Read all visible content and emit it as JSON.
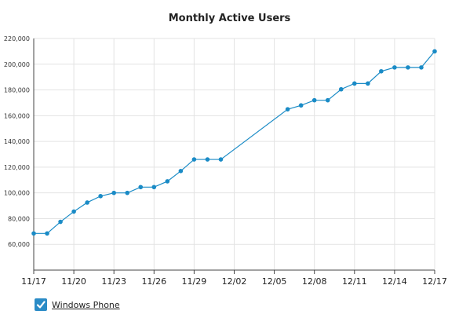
{
  "chart_data": {
    "type": "line",
    "title": "Monthly Active Users",
    "xlabel": "",
    "ylabel": "",
    "ylim": [
      40000,
      220000
    ],
    "yticks": [
      "60,000",
      "80,000",
      "100,000",
      "120,000",
      "140,000",
      "160,000",
      "180,000",
      "200,000",
      "220,000"
    ],
    "ytick_values": [
      60000,
      80000,
      100000,
      120000,
      140000,
      160000,
      180000,
      200000,
      220000
    ],
    "xticks": [
      "11/17",
      "11/20",
      "11/23",
      "11/26",
      "11/29",
      "12/02",
      "12/05",
      "12/08",
      "12/11",
      "12/14",
      "12/17"
    ],
    "grid": true,
    "legend_position": "bottom-left",
    "series": [
      {
        "name": "Windows Phone",
        "color": "#1a8bc6",
        "x": [
          "11/17",
          "11/18",
          "11/19",
          "11/20",
          "11/21",
          "11/22",
          "11/23",
          "11/24",
          "11/25",
          "11/26",
          "11/27",
          "11/28",
          "11/29",
          "11/30",
          "12/01",
          "12/06",
          "12/07",
          "12/08",
          "12/09",
          "12/10",
          "12/11",
          "12/12",
          "12/13",
          "12/14",
          "12/15",
          "12/16",
          "12/17"
        ],
        "values": [
          68500,
          68500,
          77500,
          85500,
          92500,
          97500,
          100000,
          100000,
          104500,
          104500,
          109000,
          117000,
          126000,
          126000,
          126000,
          165000,
          168000,
          172000,
          172000,
          180500,
          185000,
          185000,
          194500,
          197500,
          197500,
          197500,
          210000
        ]
      }
    ]
  },
  "legend": {
    "label": "Windows Phone",
    "checked": true
  }
}
